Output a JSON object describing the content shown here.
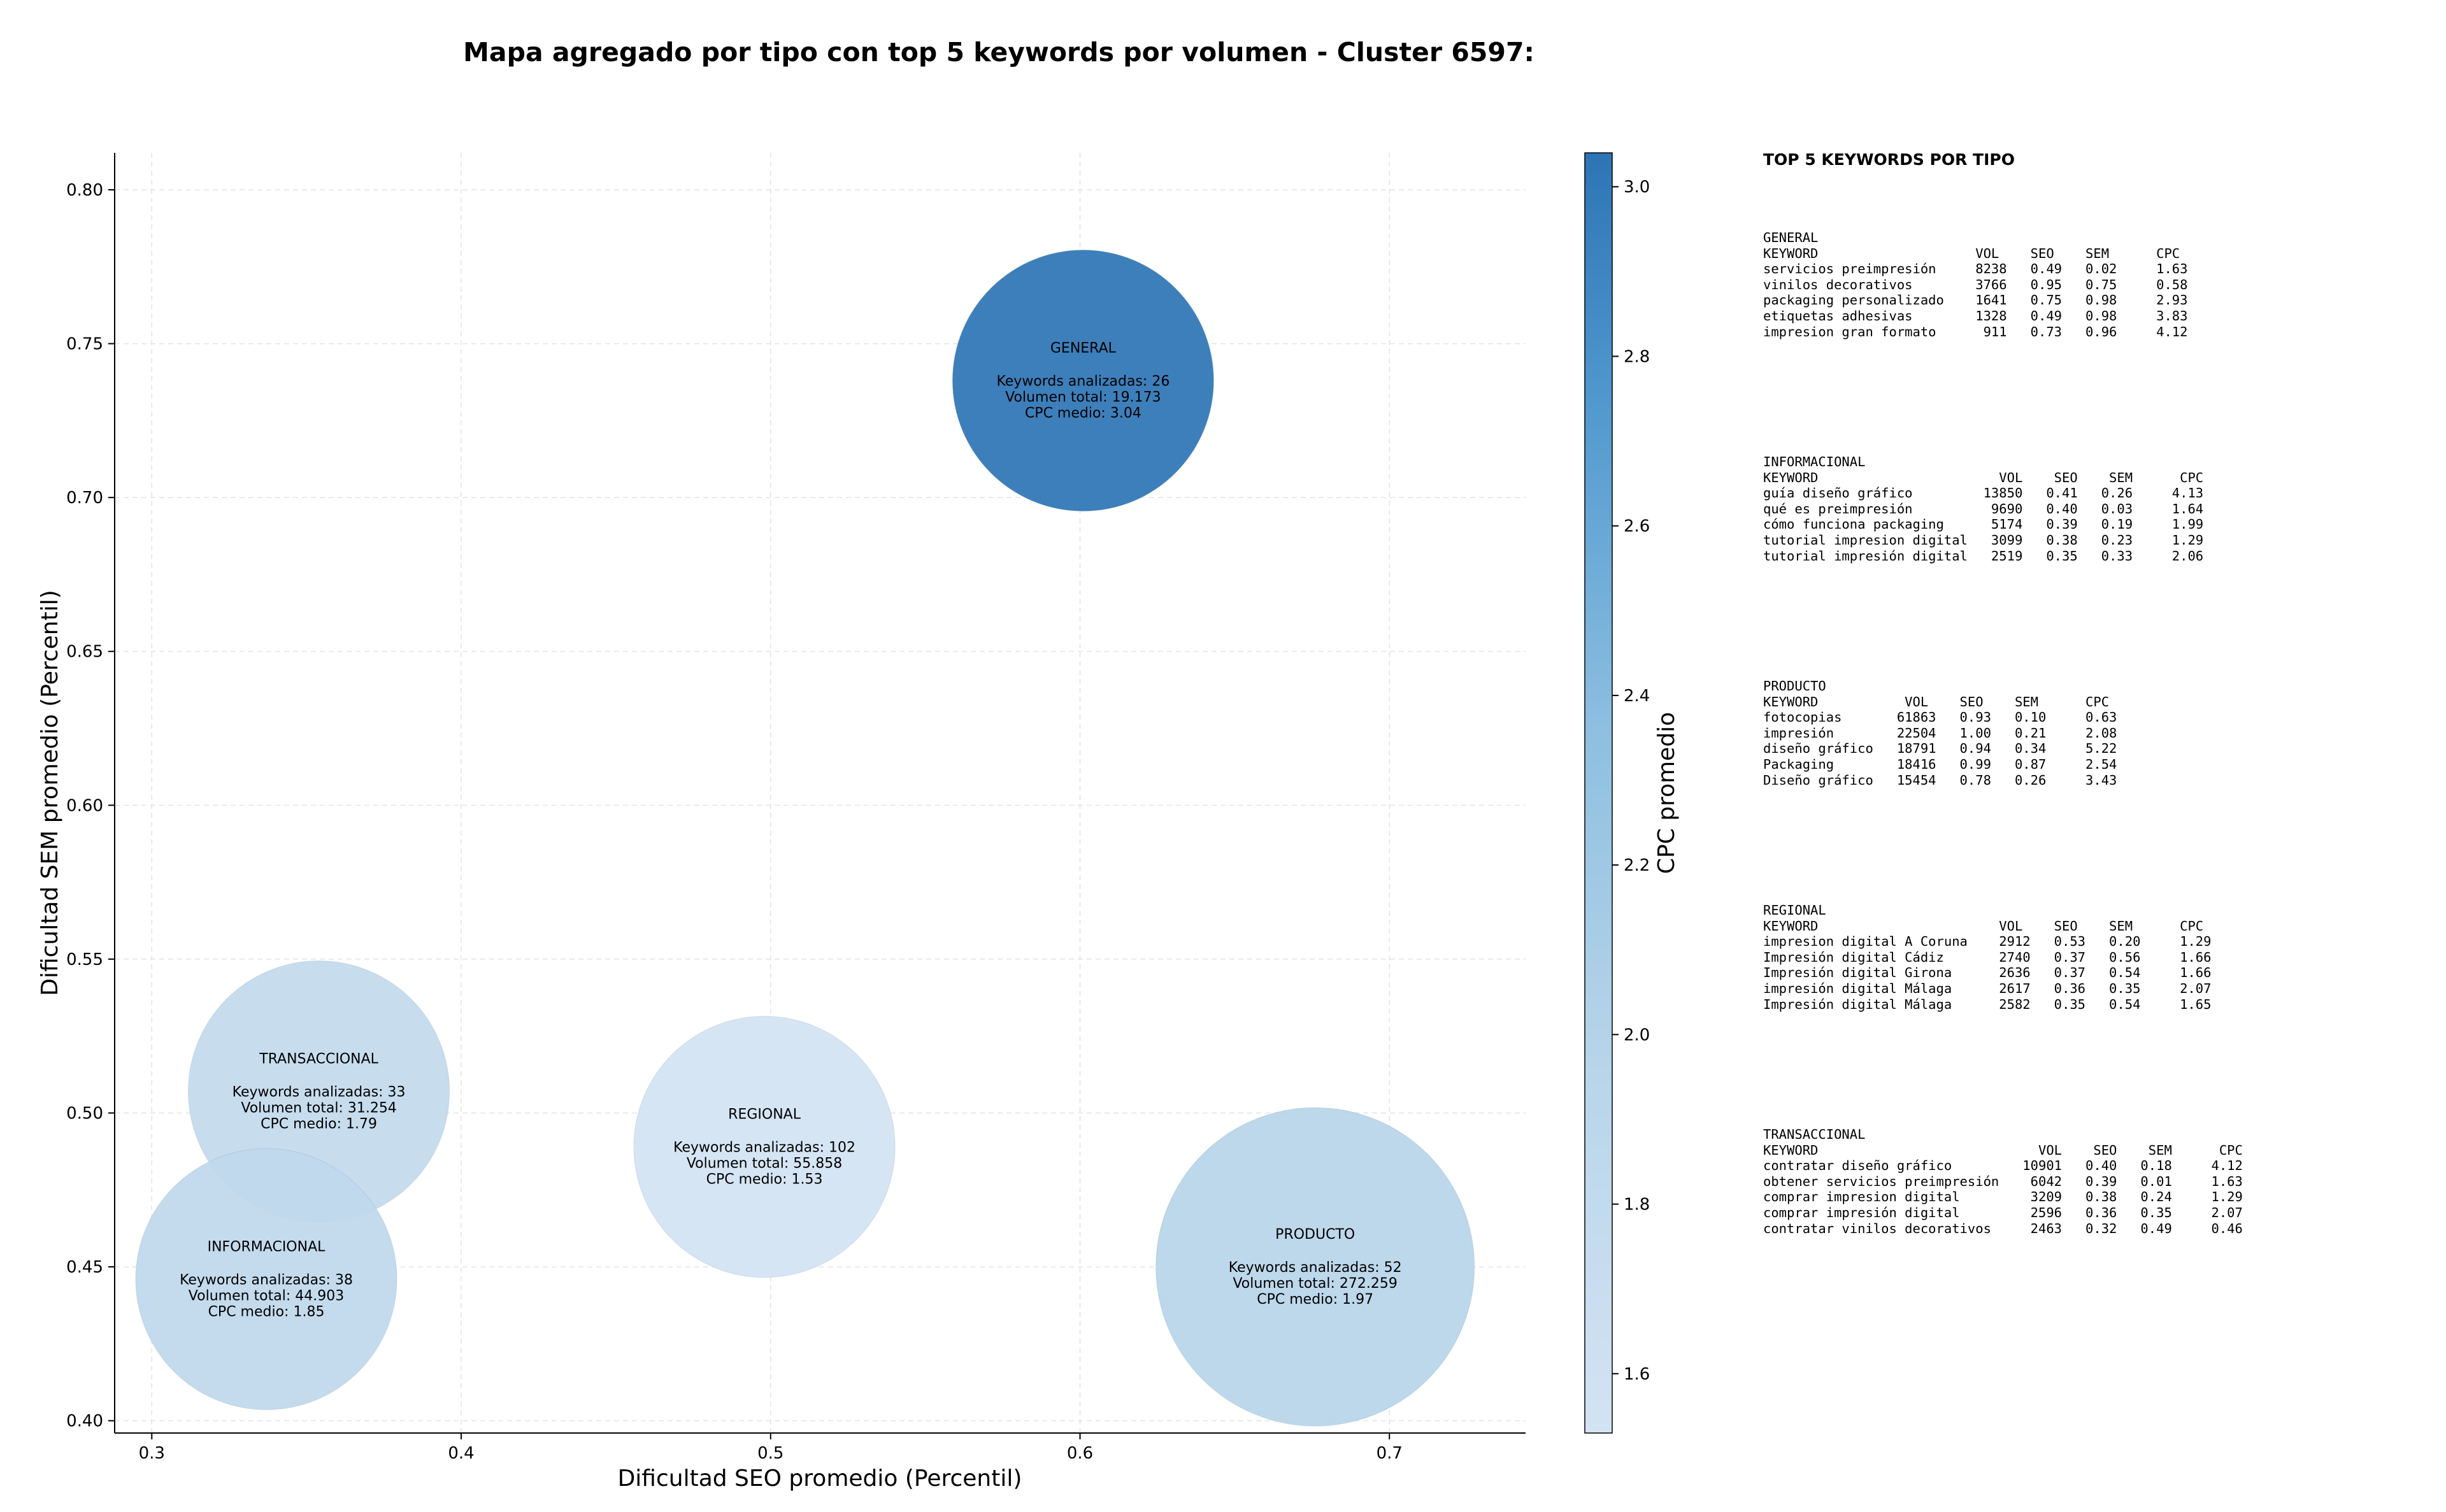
{
  "figure_title": "Mapa agregado por tipo con top 5 keywords por volumen - Cluster 6597:",
  "chart_data": {
    "type": "scatter",
    "title": "Mapa agregado por tipo con top 5 keywords por volumen - Cluster 6597:",
    "xlabel": "Dificultad SEO promedio (Percentil)",
    "ylabel": "Dificultad SEM promedio (Percentil)",
    "xlim": [
      0.288,
      0.744
    ],
    "ylim": [
      0.396,
      0.812
    ],
    "xticks": [
      "0.3",
      "0.4",
      "0.5",
      "0.6",
      "0.7"
    ],
    "yticks": [
      "0.40",
      "0.45",
      "0.50",
      "0.55",
      "0.60",
      "0.65",
      "0.70",
      "0.75",
      "0.80"
    ],
    "grid": true,
    "colorbar": {
      "label": "CPC promedio",
      "range": [
        1.53,
        3.04
      ],
      "ticks": [
        "1.6",
        "1.8",
        "2.0",
        "2.2",
        "2.4",
        "2.6",
        "2.8",
        "3.0"
      ],
      "colormap": "Blues",
      "color_low": "#d3e3f3",
      "color_high": "#2d74b5"
    },
    "points": [
      {
        "name": "GENERAL",
        "x": 0.601,
        "y": 0.738,
        "keywords_label": "Keywords analizadas: 26",
        "volume_label": "Volumen total: 19.173",
        "cpc_label": "CPC medio: 3.04",
        "cpc": 3.04,
        "volume": 19173
      },
      {
        "name": "TRANSACCIONAL",
        "x": 0.354,
        "y": 0.507,
        "keywords_label": "Keywords analizadas: 33",
        "volume_label": "Volumen total: 31.254",
        "cpc_label": "CPC medio: 1.79",
        "cpc": 1.79,
        "volume": 31254
      },
      {
        "name": "REGIONAL",
        "x": 0.498,
        "y": 0.489,
        "keywords_label": "Keywords analizadas: 102",
        "volume_label": "Volumen total: 55.858",
        "cpc_label": "CPC medio: 1.53",
        "cpc": 1.53,
        "volume": 55858
      },
      {
        "name": "INFORMACIONAL",
        "x": 0.337,
        "y": 0.446,
        "keywords_label": "Keywords analizadas: 38",
        "volume_label": "Volumen total: 44.903",
        "cpc_label": "CPC medio: 1.85",
        "cpc": 1.85,
        "volume": 44903
      },
      {
        "name": "PRODUCTO",
        "x": 0.676,
        "y": 0.45,
        "keywords_label": "Keywords analizadas: 52",
        "volume_label": "Volumen total: 272.259",
        "cpc_label": "CPC medio: 1.97",
        "cpc": 1.97,
        "volume": 272259
      }
    ]
  },
  "keyword_panel": {
    "title": "TOP 5 KEYWORDS POR TIPO",
    "groups": [
      {
        "name": "GENERAL",
        "header": "KEYWORD                    VOL    SEO    SEM      CPC",
        "rows": [
          "servicios preimpresión     8238   0.49   0.02     1.63",
          "vinilos decorativos        3766   0.95   0.75     0.58",
          "packaging personalizado    1641   0.75   0.98     2.93",
          "etiquetas adhesivas        1328   0.49   0.98     3.83",
          "impresion gran formato      911   0.73   0.96     4.12"
        ]
      },
      {
        "name": "INFORMACIONAL",
        "header": "KEYWORD                       VOL    SEO    SEM      CPC",
        "rows": [
          "guía diseño gráfico         13850   0.41   0.26     4.13",
          "qué es preimpresión          9690   0.40   0.03     1.64",
          "cómo funciona packaging      5174   0.39   0.19     1.99",
          "tutorial impresion digital   3099   0.38   0.23     1.29",
          "tutorial impresión digital   2519   0.35   0.33     2.06"
        ]
      },
      {
        "name": "PRODUCTO",
        "header": "KEYWORD           VOL    SEO    SEM      CPC",
        "rows": [
          "fotocopias       61863   0.93   0.10     0.63",
          "impresión        22504   1.00   0.21     2.08",
          "diseño gráfico   18791   0.94   0.34     5.22",
          "Packaging        18416   0.99   0.87     2.54",
          "Diseño gráfico   15454   0.78   0.26     3.43"
        ]
      },
      {
        "name": "REGIONAL",
        "header": "KEYWORD                       VOL    SEO    SEM      CPC",
        "rows": [
          "impresion digital A Coruna    2912   0.53   0.20     1.29",
          "Impresión digital Cádiz       2740   0.37   0.56     1.66",
          "Impresión digital Girona      2636   0.37   0.54     1.66",
          "impresión digital Málaga      2617   0.36   0.35     2.07",
          "Impresión digital Málaga      2582   0.35   0.54     1.65"
        ]
      },
      {
        "name": "TRANSACCIONAL",
        "header": "KEYWORD                            VOL    SEO    SEM      CPC",
        "rows": [
          "contratar diseño gráfico         10901   0.40   0.18     4.12",
          "obtener servicios preimpresión    6042   0.39   0.01     1.63",
          "comprar impresion digital         3209   0.38   0.24     1.29",
          "comprar impresión digital         2596   0.36   0.35     2.07",
          "contratar vinilos decorativos     2463   0.32   0.49     0.46"
        ]
      }
    ]
  }
}
